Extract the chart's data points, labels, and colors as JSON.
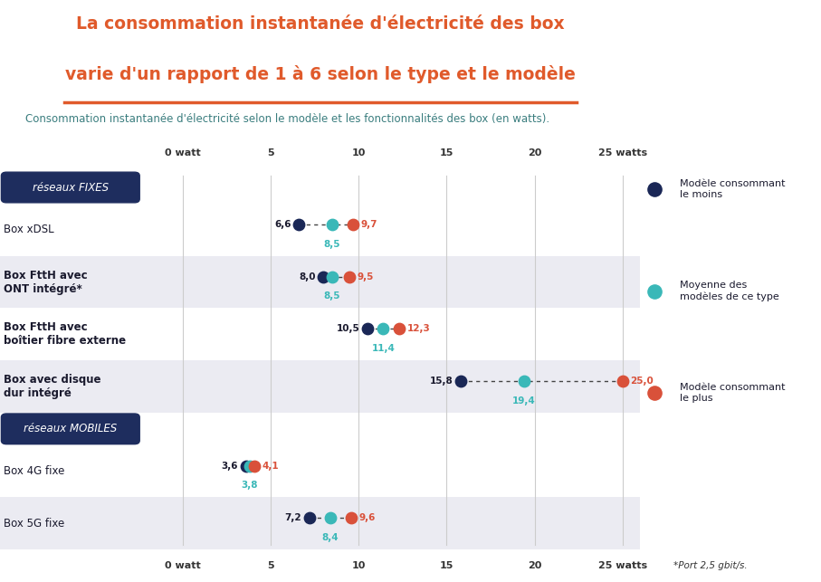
{
  "title_line1": "La consommation instantanée d'électricité des box",
  "title_line2": "varie d'un rapport de 1 à 6 selon le type et le modèle",
  "subtitle": "Consommation instantanée d'électricité selon le modèle et les fonctionnalités des box (en watts).",
  "footnote": "*Port 2,5 gbit/s.",
  "bg_color": "#ffffff",
  "plot_bg_color": "#ffffff",
  "title_color": "#e05a2b",
  "subtitle_color": "#3a7d7e",
  "axis_range": [
    0,
    26
  ],
  "axis_ticks": [
    0,
    5,
    10,
    15,
    20,
    25
  ],
  "axis_tick_labels": [
    "0 watt",
    "5",
    "10",
    "15",
    "20",
    "25 watts"
  ],
  "color_min": "#1a2756",
  "color_avg": "#3ab8b8",
  "color_max": "#d9513a",
  "section_fixes_label": "réseaux FIXES",
  "section_mobiles_label": "réseaux MOBILES",
  "section_fixes_bg": "#e8e8ee",
  "section_mobiles_bg": "#e8e8ee",
  "row_alt_bg": "#f0f0f5",
  "rows": [
    {
      "label": "Box xDSL",
      "min": 6.6,
      "avg": 8.5,
      "max": 9.7,
      "section": "fixes",
      "alt": false
    },
    {
      "label": "Box FttH avec\nONT intégré*",
      "min": 8.0,
      "avg": 8.5,
      "max": 9.5,
      "section": "fixes",
      "alt": true
    },
    {
      "label": "Box FttH avec\nboîtier fibre externe",
      "min": 10.5,
      "avg": 11.4,
      "max": 12.3,
      "section": "fixes",
      "alt": false
    },
    {
      "label": "Box avec disque\ndur intégré",
      "min": 15.8,
      "avg": 19.4,
      "max": 25.0,
      "section": "fixes",
      "alt": true
    },
    {
      "label": "Box 4G fixe",
      "min": 3.6,
      "avg": 3.8,
      "max": 4.1,
      "section": "mobiles",
      "alt": false
    },
    {
      "label": "Box 5G fixe",
      "min": 7.2,
      "avg": 8.4,
      "max": 9.6,
      "section": "mobiles",
      "alt": true
    }
  ],
  "legend_items": [
    {
      "label": "Modèle consommant\nle moins",
      "color": "#1a2756"
    },
    {
      "label": "Moyenne des\nmodèles de ce type",
      "color": "#3ab8b8"
    },
    {
      "label": "Modèle consommant\nle plus",
      "color": "#d9513a"
    }
  ]
}
